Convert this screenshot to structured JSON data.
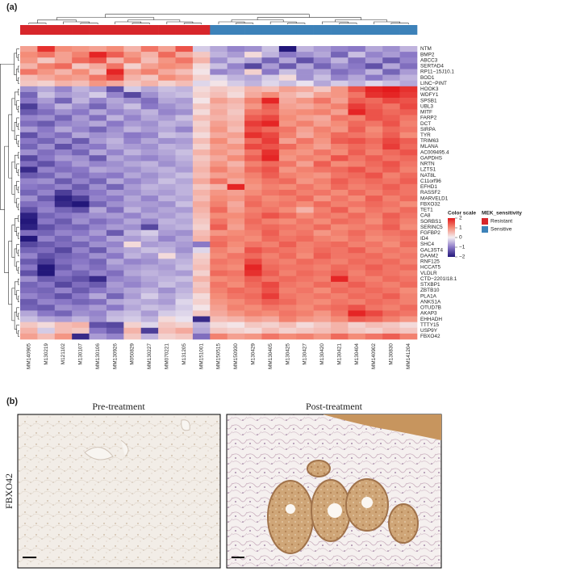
{
  "chart_data": {
    "type": "heatmap",
    "panel_labels": [
      "(a)",
      "(b)"
    ],
    "x": [
      "MM140905",
      "M130219",
      "M121102",
      "M130107",
      "MM130106",
      "MM130926",
      "M050829",
      "MM130227",
      "MM070221",
      "M131205",
      "MM151001",
      "MM150515",
      "MM150930",
      "M130429",
      "MM130405",
      "M130425",
      "M130427",
      "M130420",
      "M130421",
      "M130404",
      "MM140902",
      "M130830",
      "MM141204"
    ],
    "y": [
      "NTM",
      "BMP2",
      "ABCC3",
      "SERTAD4",
      "RP11−15J10.1",
      "BOD1",
      "LINC−PINT",
      "HOOK3",
      "WDFY1",
      "SPSB1",
      "UBL3",
      "MITF",
      "FARP2",
      "DCT",
      "SIRPA",
      "TYR",
      "TRIM63",
      "MLANA",
      "AC009495.4",
      "GAPDHS",
      "NRTN",
      "LZTS1",
      "NAT8L",
      "C11orf96",
      "EFHD1",
      "RASSF2",
      "MARVELD1",
      "FBXO32",
      "TET1",
      "CA8",
      "SORBS1",
      "SERINC5",
      "FGFBP2",
      "ID4",
      "SHC4",
      "GAL3ST4",
      "DAAM2",
      "RNF125",
      "HCCAT5",
      "VLDLR",
      "CTD−2201I18.1",
      "STXBP1",
      "ZBTB10",
      "PLA1A",
      "ANKS1A",
      "OTUD7B",
      "AKAP3",
      "EHHADH",
      "TTTY15",
      "USP9Y",
      "FBXO42"
    ],
    "values": [
      [
        0.8,
        1.8,
        1,
        0.9,
        0.8,
        1,
        0.6,
        1.2,
        0.8,
        1.5,
        -0.3,
        -0.6,
        -0.9,
        -0.8,
        -0.4,
        -2,
        -0.5,
        -0.7,
        -0.9,
        -1,
        -0.6,
        -0.8,
        -0.5
      ],
      [
        1,
        1.2,
        0.8,
        1.1,
        1.9,
        1.4,
        0.9,
        0.6,
        1.3,
        0.7,
        0.4,
        -0.5,
        -0.7,
        0.2,
        -0.5,
        -1,
        -0.8,
        -0.6,
        -1.2,
        -0.4,
        -0.9,
        -0.7,
        -1
      ],
      [
        0.9,
        0.4,
        0.8,
        1.3,
        1.5,
        0.6,
        1.1,
        0.5,
        0.9,
        1.2,
        0.6,
        -0.8,
        -0.4,
        -0.6,
        -1.2,
        -0.6,
        -1.4,
        -0.9,
        -0.5,
        -1.1,
        -0.7,
        -1.3,
        -0.9
      ],
      [
        0.6,
        1.1,
        1.3,
        0.4,
        0.7,
        1.2,
        0.3,
        0.8,
        1,
        0.9,
        0.2,
        -0.4,
        -0.9,
        -1.5,
        -0.7,
        -1.3,
        -0.6,
        -1.2,
        -0.8,
        -1,
        -1.4,
        -0.6,
        -1.1
      ],
      [
        1.2,
        0.9,
        0.6,
        1,
        0.5,
        1.9,
        0.8,
        1.1,
        0.7,
        0.5,
        0.1,
        -0.9,
        -0.7,
        0.3,
        -1,
        -0.4,
        -0.8,
        -0.6,
        -1.1,
        -0.9,
        -0.5,
        -1.2,
        -0.7
      ],
      [
        0.5,
        0.7,
        0.9,
        0.8,
        1.2,
        1.6,
        0.6,
        0.4,
        1,
        0.8,
        0.3,
        -0.2,
        -0.5,
        -0.6,
        -0.3,
        0.2,
        -0.8,
        -0.4,
        -0.9,
        -0.6,
        -1,
        -0.7,
        -0.5
      ],
      [
        0.4,
        0.3,
        0.6,
        0.5,
        0.9,
        0.7,
        0.4,
        0.6,
        0.3,
        0.5,
        -0.2,
        0.1,
        -0.3,
        -0.5,
        -0.2,
        -0.4,
        -0.1,
        -0.6,
        -0.3,
        -0.5,
        -0.2,
        -0.4,
        -0.6
      ],
      [
        -0.8,
        -0.6,
        -0.9,
        -0.5,
        -0.7,
        -1.4,
        -0.3,
        -0.6,
        -0.4,
        -0.5,
        0.2,
        0.4,
        0.3,
        0.6,
        0.5,
        0.8,
        0.7,
        0.4,
        0.9,
        1.5,
        1.9,
        2,
        1.8
      ],
      [
        -1.2,
        -0.4,
        -0.7,
        -0.6,
        -0.3,
        -0.9,
        -1.5,
        -0.8,
        -0.5,
        -0.4,
        0.3,
        0.5,
        0.2,
        0.7,
        1,
        0.6,
        0.4,
        0.8,
        0.9,
        1.2,
        1.8,
        1.9,
        1.7
      ],
      [
        -1,
        -0.7,
        -1.2,
        -0.5,
        -0.9,
        -0.6,
        -0.8,
        -1.1,
        -0.6,
        -0.7,
        0.1,
        0.8,
        0.6,
        1.1,
        1.9,
        0.7,
        0.9,
        1.2,
        0.8,
        1.4,
        1.3,
        1.6,
        1.5
      ],
      [
        -1.6,
        -0.9,
        -0.5,
        -0.8,
        -1.2,
        -0.7,
        -0.4,
        -1,
        -0.8,
        -0.6,
        0.4,
        0.6,
        0.5,
        0.9,
        1.4,
        0.8,
        0.7,
        0.9,
        1.1,
        1.7,
        1.4,
        1.2,
        1.6
      ],
      [
        -1.3,
        -1.1,
        -0.8,
        -1,
        -0.6,
        -0.9,
        -0.7,
        -0.5,
        -0.9,
        -0.8,
        0.2,
        0.7,
        0.4,
        1.2,
        1.3,
        0.9,
        1,
        1.1,
        0.8,
        1.9,
        1.5,
        1.3,
        1.4
      ],
      [
        -0.9,
        -0.8,
        -1.2,
        -0.7,
        -1.1,
        -0.5,
        -0.9,
        -0.6,
        -0.7,
        -0.4,
        0.5,
        0.6,
        0.5,
        1.4,
        1.6,
        1,
        0.8,
        0.7,
        1.2,
        1.1,
        1.5,
        1.4,
        1.2
      ],
      [
        -1.1,
        -1.3,
        -0.9,
        -0.8,
        -0.6,
        -1,
        -0.7,
        -0.8,
        -0.5,
        -0.6,
        0.3,
        0.8,
        0.6,
        1.7,
        1.9,
        0.9,
        1.1,
        0.8,
        1,
        1.3,
        1.2,
        1.5,
        1.1
      ],
      [
        -0.7,
        -1,
        -0.6,
        -0.9,
        -1.2,
        -0.8,
        -0.5,
        -0.7,
        -0.6,
        -0.9,
        0.4,
        0.9,
        0.5,
        1.5,
        1.3,
        1.2,
        0.8,
        1.1,
        0.9,
        1.4,
        1,
        1.3,
        1.2
      ],
      [
        -1.4,
        -0.9,
        -1.1,
        -0.6,
        -0.8,
        -0.7,
        -1,
        -0.9,
        -0.4,
        -0.5,
        0.2,
        0.7,
        0.8,
        1.8,
        1.6,
        1.1,
        0.7,
        1,
        1.3,
        1.2,
        1.1,
        1.4,
        1
      ],
      [
        -1,
        -1.2,
        -0.8,
        -1.3,
        -0.7,
        -0.5,
        -0.9,
        -0.6,
        -0.8,
        -0.7,
        0.5,
        1,
        0.6,
        1.3,
        1.7,
        0.8,
        1.2,
        0.9,
        1.4,
        1.5,
        1.3,
        1.6,
        1.4
      ],
      [
        -1.2,
        -0.8,
        -1.4,
        -0.9,
        -1,
        -0.6,
        -0.7,
        -0.8,
        -0.5,
        -0.6,
        0.3,
        0.8,
        0.9,
        1.6,
        1.5,
        1.3,
        1,
        0.8,
        1.1,
        1.3,
        1.2,
        1.7,
        1.3
      ],
      [
        -0.8,
        -1.1,
        -0.9,
        -1.2,
        -0.6,
        -0.9,
        -0.5,
        -0.7,
        -0.6,
        -0.4,
        0.6,
        0.9,
        0.7,
        1.2,
        1.8,
        1,
        0.9,
        1.2,
        1,
        1.4,
        1.1,
        1.3,
        1.5
      ],
      [
        -1.5,
        -1,
        -0.7,
        -0.8,
        -1.3,
        -0.6,
        -0.8,
        -0.9,
        -0.7,
        -0.5,
        0.4,
        0.7,
        1,
        1.4,
        1.9,
        0.9,
        1.1,
        1,
        1.5,
        1.2,
        1.4,
        1.2,
        1.3
      ],
      [
        -1.1,
        -1.4,
        -1,
        -0.7,
        -0.9,
        -0.8,
        -0.6,
        -0.5,
        -0.8,
        -0.6,
        0.5,
        0.9,
        0.6,
        1.1,
        1.3,
        1.2,
        0.8,
        1.4,
        1,
        1.1,
        1.3,
        1.5,
        1.2
      ],
      [
        -1.8,
        -0.9,
        -1.1,
        -1,
        -0.6,
        -0.7,
        -0.8,
        -0.6,
        -0.5,
        -0.7,
        0.6,
        1.1,
        0.8,
        1.3,
        1.5,
        0.9,
        1.1,
        1.2,
        1.3,
        1.5,
        1.2,
        1.4,
        1.1
      ],
      [
        -1.3,
        -1.2,
        -0.8,
        -1.1,
        -0.9,
        -1,
        -0.6,
        -0.8,
        -0.6,
        -0.4,
        0.5,
        0.8,
        0.9,
        1.1,
        1.4,
        1.1,
        1,
        0.9,
        1.2,
        1.3,
        1.5,
        1.1,
        1.3
      ],
      [
        -0.9,
        -0.8,
        -1.3,
        -0.9,
        -1.2,
        -0.6,
        -0.9,
        -0.7,
        -0.4,
        -0.6,
        0.7,
        1.2,
        0.7,
        1,
        1.2,
        1.3,
        0.9,
        1.1,
        1.4,
        1.2,
        1.3,
        1.2,
        1.4
      ],
      [
        -1,
        -1.1,
        -0.9,
        -1.3,
        -0.8,
        -1.2,
        -0.7,
        -0.5,
        -0.6,
        -0.5,
        0.4,
        0.6,
        1.9,
        0.9,
        1.1,
        1,
        1.2,
        1,
        1.3,
        1.1,
        1.2,
        1.4,
        1.2
      ],
      [
        -1.2,
        -0.9,
        -1.6,
        -1.1,
        -1,
        -0.7,
        -0.8,
        -0.6,
        -0.7,
        -0.5,
        0.6,
        0.9,
        0.8,
        1,
        1.2,
        1.3,
        1.1,
        1.2,
        1,
        1.3,
        1.1,
        1.3,
        1.2
      ],
      [
        -0.8,
        -1.3,
        -1.9,
        -1.6,
        -0.9,
        -1,
        -0.6,
        -0.9,
        -0.5,
        -0.6,
        0.5,
        1,
        0.9,
        1.2,
        1,
        1.1,
        1.3,
        0.9,
        1.2,
        1,
        1.4,
        1.1,
        1.3
      ],
      [
        -1.1,
        -1,
        -1.8,
        -2,
        -1.2,
        -0.8,
        -0.7,
        -0.7,
        -0.8,
        -0.4,
        0.7,
        1.1,
        0.7,
        1.3,
        1.1,
        1.2,
        1,
        1.3,
        1.1,
        1.2,
        1.3,
        1.2,
        1
      ],
      [
        -1.4,
        -0.9,
        -1.2,
        -1.4,
        -0.6,
        -1.1,
        -0.5,
        -0.8,
        -0.6,
        -0.7,
        0.6,
        1.3,
        0.8,
        1.1,
        1.2,
        1,
        0.6,
        1.1,
        1.4,
        1,
        1.2,
        1.1,
        1.3
      ],
      [
        -1.9,
        -1.2,
        -1,
        -0.9,
        -0.8,
        -0.7,
        -0.9,
        -0.6,
        -0.7,
        -0.5,
        0.5,
        1,
        1,
        1.2,
        1.5,
        1.3,
        1,
        1.2,
        1.1,
        1.3,
        1.1,
        1.4,
        1.2
      ],
      [
        -2,
        -1,
        -1.3,
        -0.8,
        -1.1,
        -0.9,
        -0.6,
        -0.9,
        -0.5,
        -0.6,
        0.4,
        1.2,
        0.9,
        1.3,
        1.1,
        1,
        1.2,
        1,
        1.3,
        1.2,
        1,
        1.3,
        1.1
      ],
      [
        -1.9,
        -1.4,
        -1.1,
        -1.2,
        -0.9,
        -0.7,
        -0.8,
        -1.5,
        -0.6,
        -0.5,
        0.3,
        1.4,
        0.8,
        1.2,
        1.3,
        1.2,
        1.1,
        1.3,
        1,
        1.1,
        1.2,
        1.4,
        1
      ],
      [
        -1.1,
        -1.2,
        -0.9,
        -1,
        -0.7,
        -1.3,
        -0.5,
        -0.3,
        -0.7,
        -0.8,
        0.5,
        0.9,
        1,
        1.1,
        1.4,
        1.1,
        1.2,
        0.9,
        1.1,
        1.3,
        1.1,
        1.2,
        1.3
      ],
      [
        -2,
        -0.9,
        -1.2,
        -0.8,
        -1,
        -0.6,
        -0.7,
        -0.5,
        -0.9,
        -0.6,
        0.6,
        1.2,
        1.1,
        1,
        1.3,
        1.2,
        1.3,
        1.1,
        1,
        1.2,
        1,
        1.1,
        1.2
      ],
      [
        -1.5,
        -1.3,
        -1.1,
        -1.2,
        -0.8,
        -0.9,
        0.2,
        -0.7,
        -0.6,
        -0.7,
        -1,
        1.3,
        1,
        1.2,
        1.1,
        1.4,
        1.1,
        1.2,
        1.3,
        1.1,
        1.2,
        1,
        1.3
      ],
      [
        -1.2,
        -1.1,
        -1.5,
        -0.9,
        -1.3,
        -0.7,
        -0.6,
        -0.4,
        -0.5,
        -0.8,
        -0.2,
        1.1,
        0.9,
        1.5,
        1.3,
        1.2,
        1.1,
        1.3,
        1.2,
        1.4,
        1.1,
        1.2,
        1.1
      ],
      [
        -0.9,
        -1.4,
        -1.2,
        -1.1,
        -0.8,
        -1,
        -0.5,
        -0.7,
        0.2,
        -0.6,
        0.3,
        1,
        1.2,
        1.3,
        1.1,
        1.3,
        1,
        1.4,
        1.2,
        1.2,
        1.3,
        1.1,
        1.2
      ],
      [
        -1.3,
        -1.6,
        -1.1,
        -1,
        -1.2,
        -0.6,
        -0.9,
        -0.8,
        -0.6,
        -0.5,
        0.4,
        1.2,
        1.1,
        1.6,
        1.2,
        1.1,
        1.3,
        1.2,
        1.1,
        1.3,
        1.2,
        1.3,
        1.1
      ],
      [
        -1,
        -2,
        -1.3,
        -0.9,
        -1.1,
        -0.8,
        -0.7,
        -0.6,
        -0.7,
        -0.4,
        0.5,
        1.1,
        1,
        1.9,
        1.3,
        1.2,
        1.2,
        1.1,
        1.3,
        1.2,
        1.4,
        1.2,
        1.3
      ],
      [
        -1.4,
        -2,
        -1,
        -1.2,
        -0.9,
        -1.1,
        -0.6,
        -0.5,
        -0.6,
        -0.7,
        0.3,
        1.3,
        1.2,
        1.8,
        1.4,
        1.1,
        1.3,
        1.2,
        1.4,
        1.1,
        1.3,
        1.2,
        1.1
      ],
      [
        -0.8,
        -1.3,
        -1.2,
        -1.4,
        -1.8,
        -0.9,
        -0.8,
        -0.6,
        -0.5,
        -0.4,
        0.6,
        1,
        1.1,
        1.4,
        1.2,
        1.3,
        1.2,
        1.1,
        1.9,
        1.2,
        1.1,
        1.3,
        1.2
      ],
      [
        -1.2,
        -1,
        -1.5,
        -1.1,
        -1.3,
        -0.7,
        -0.9,
        -0.7,
        -0.4,
        -0.6,
        0.4,
        1.2,
        1,
        1.3,
        1.6,
        1.2,
        1.1,
        1.3,
        1.2,
        1.4,
        1.2,
        1.1,
        1.3
      ],
      [
        -1.1,
        -1.2,
        -0.9,
        -1.3,
        -1,
        -0.8,
        -0.6,
        -0.5,
        -0.8,
        -0.5,
        0.5,
        1.1,
        1.3,
        1.2,
        1.5,
        1.1,
        1.2,
        1,
        1.3,
        1.2,
        1.3,
        1.2,
        1
      ],
      [
        -0.9,
        -1.1,
        -1.4,
        -1,
        -0.6,
        -1.2,
        -0.7,
        -0.3,
        -0.6,
        -0.4,
        0.2,
        1,
        1.2,
        1.3,
        1.7,
        1.2,
        1.1,
        1.2,
        1.1,
        1.3,
        1.2,
        1.4,
        1.1
      ],
      [
        -1.3,
        -0.9,
        -1,
        -1.2,
        -1.1,
        -0.6,
        -0.5,
        -0.6,
        -0.7,
        -0.2,
        0.3,
        0.9,
        1,
        1.2,
        1.4,
        1.3,
        1.1,
        1,
        1.2,
        1.1,
        1.3,
        1.2,
        1.1
      ],
      [
        -1.2,
        -1.3,
        -0.8,
        -0.9,
        -0.7,
        -1,
        -0.6,
        -0.4,
        -0.5,
        -0.3,
        0.1,
        0.8,
        1.1,
        1,
        1.2,
        1.1,
        1,
        1.2,
        1.3,
        1.5,
        1.2,
        1.1,
        1.3
      ],
      [
        -0.6,
        -1,
        -1.2,
        -0.8,
        -0.9,
        -0.5,
        -0.4,
        -0.7,
        -0.3,
        -0.2,
        0.4,
        0.7,
        0.9,
        1.1,
        1,
        1.2,
        1.1,
        0.9,
        1.2,
        1.9,
        1.6,
        1.3,
        1.2
      ],
      [
        -0.4,
        -0.6,
        -0.7,
        -0.5,
        -0.8,
        -0.4,
        -0.3,
        -0.5,
        0.2,
        -0.1,
        -1.8,
        0.5,
        0.6,
        0.8,
        0.7,
        1.1,
        0.9,
        0.8,
        1,
        1.4,
        1.3,
        1.1,
        0.9
      ],
      [
        0.4,
        0.2,
        0.5,
        0.6,
        -1.4,
        -1.5,
        0.3,
        -0.2,
        0.4,
        0.3,
        -0.5,
        0.2,
        0.1,
        0.4,
        0.3,
        0.5,
        0.2,
        0.4,
        0.6,
        0.3,
        0.5,
        0.4,
        0.2
      ],
      [
        0.6,
        -0.3,
        0.5,
        0.4,
        -1,
        -1.3,
        0.6,
        -1.6,
        0.5,
        0.7,
        -0.6,
        0.4,
        0.3,
        0.2,
        0.5,
        0.3,
        0.4,
        0.5,
        0.6,
        0.4,
        0.3,
        0.5,
        0.4
      ],
      [
        0.8,
        0.5,
        0.9,
        -1.8,
        -0.7,
        -0.9,
        0.4,
        -0.5,
        0.3,
        0.4,
        -1.1,
        1.1,
        0.8,
        0.9,
        1.2,
        1,
        1.1,
        0.9,
        1.3,
        1,
        1.2,
        1.4,
        1.1
      ]
    ],
    "colorbar": {
      "title": "Color scale",
      "zlim": [
        -2,
        2
      ],
      "colors": [
        "#23177a",
        "#8a78c6",
        "#f3eef3",
        "#f48c78",
        "#e31a1c"
      ],
      "ticks": [
        2,
        1,
        0,
        {
          "value": -1,
          "label": "−1"
        },
        {
          "value": -2,
          "label": "−2"
        }
      ]
    },
    "annotation": {
      "title": "MEK_sensitivity",
      "groups": [
        {
          "name": "Resistant",
          "color": "#d7262b"
        },
        {
          "name": "Sensitive",
          "color": "#3d82b9"
        }
      ],
      "column_group": [
        0,
        0,
        0,
        0,
        0,
        0,
        0,
        0,
        0,
        0,
        0,
        1,
        1,
        1,
        1,
        1,
        1,
        1,
        1,
        1,
        1,
        1,
        1
      ]
    },
    "panel_b": {
      "titles": [
        "Pre-treatment",
        "Post-treatment"
      ],
      "ylabel": "FBXO42"
    }
  }
}
